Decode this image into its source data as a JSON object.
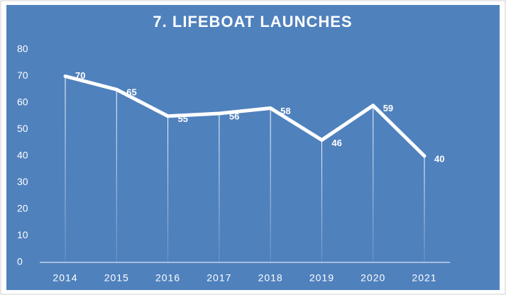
{
  "chart_data": {
    "type": "line",
    "title": "7. LIFEBOAT LAUNCHES",
    "categories": [
      "2014",
      "2015",
      "2016",
      "2017",
      "2018",
      "2019",
      "2020",
      "2021"
    ],
    "values": [
      70,
      65,
      55,
      56,
      58,
      46,
      59,
      40
    ],
    "color": "#ffffff",
    "background": "#4f81bd",
    "ylim": [
      0,
      80
    ],
    "yticks": [
      0,
      10,
      20,
      30,
      40,
      50,
      60,
      70,
      80
    ],
    "grid": false,
    "drop_lines": true
  }
}
